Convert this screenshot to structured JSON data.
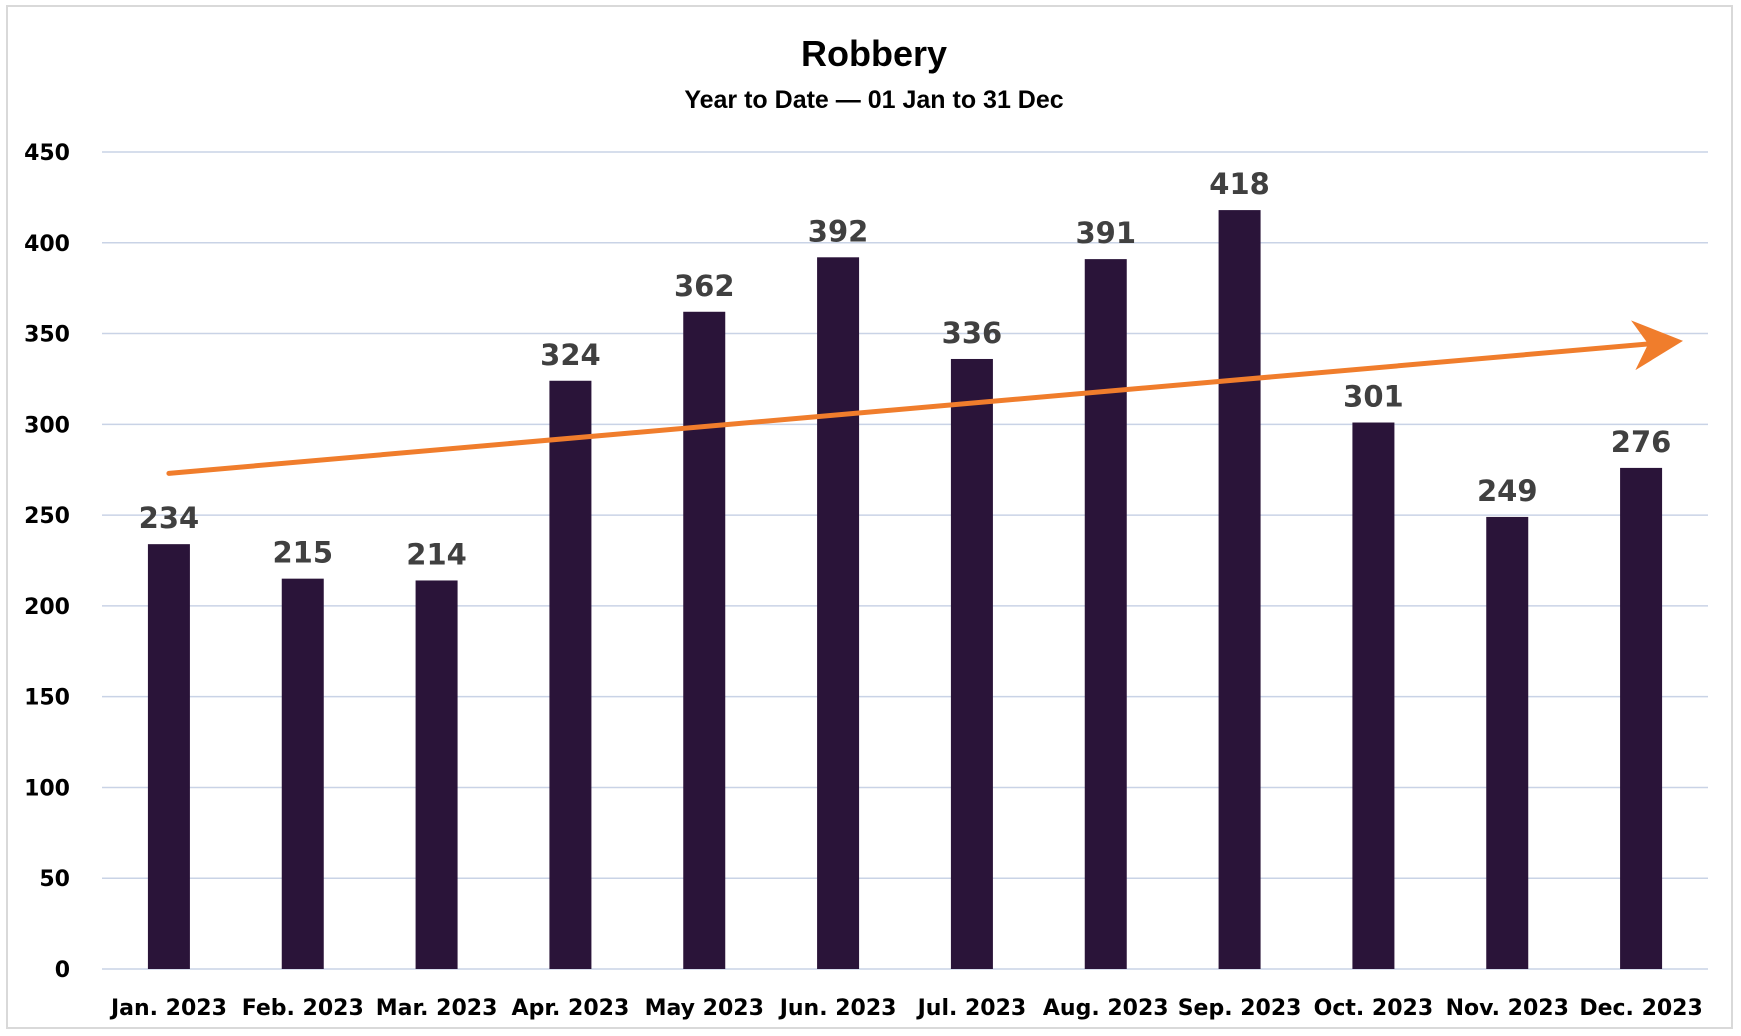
{
  "chart_data": {
    "type": "bar",
    "title": "Robbery",
    "subtitle": "Year to Date — 01 Jan to 31 Dec",
    "xlabel": "",
    "ylabel": "",
    "categories": [
      "Jan. 2023",
      "Feb. 2023",
      "Mar. 2023",
      "Apr. 2023",
      "May 2023",
      "Jun. 2023",
      "Jul. 2023",
      "Aug. 2023",
      "Sep. 2023",
      "Oct. 2023",
      "Nov. 2023",
      "Dec. 2023"
    ],
    "values": [
      234,
      215,
      214,
      324,
      362,
      392,
      336,
      391,
      418,
      301,
      249,
      276
    ],
    "ylim": [
      0,
      450
    ],
    "yticks": [
      0,
      50,
      100,
      150,
      200,
      250,
      300,
      350,
      400,
      450
    ],
    "grid": true,
    "legend": "none",
    "bar_color": "#2a1439",
    "trend_arrow": {
      "color": "#f07d2c",
      "start_value": 273,
      "end_value": 345
    }
  }
}
